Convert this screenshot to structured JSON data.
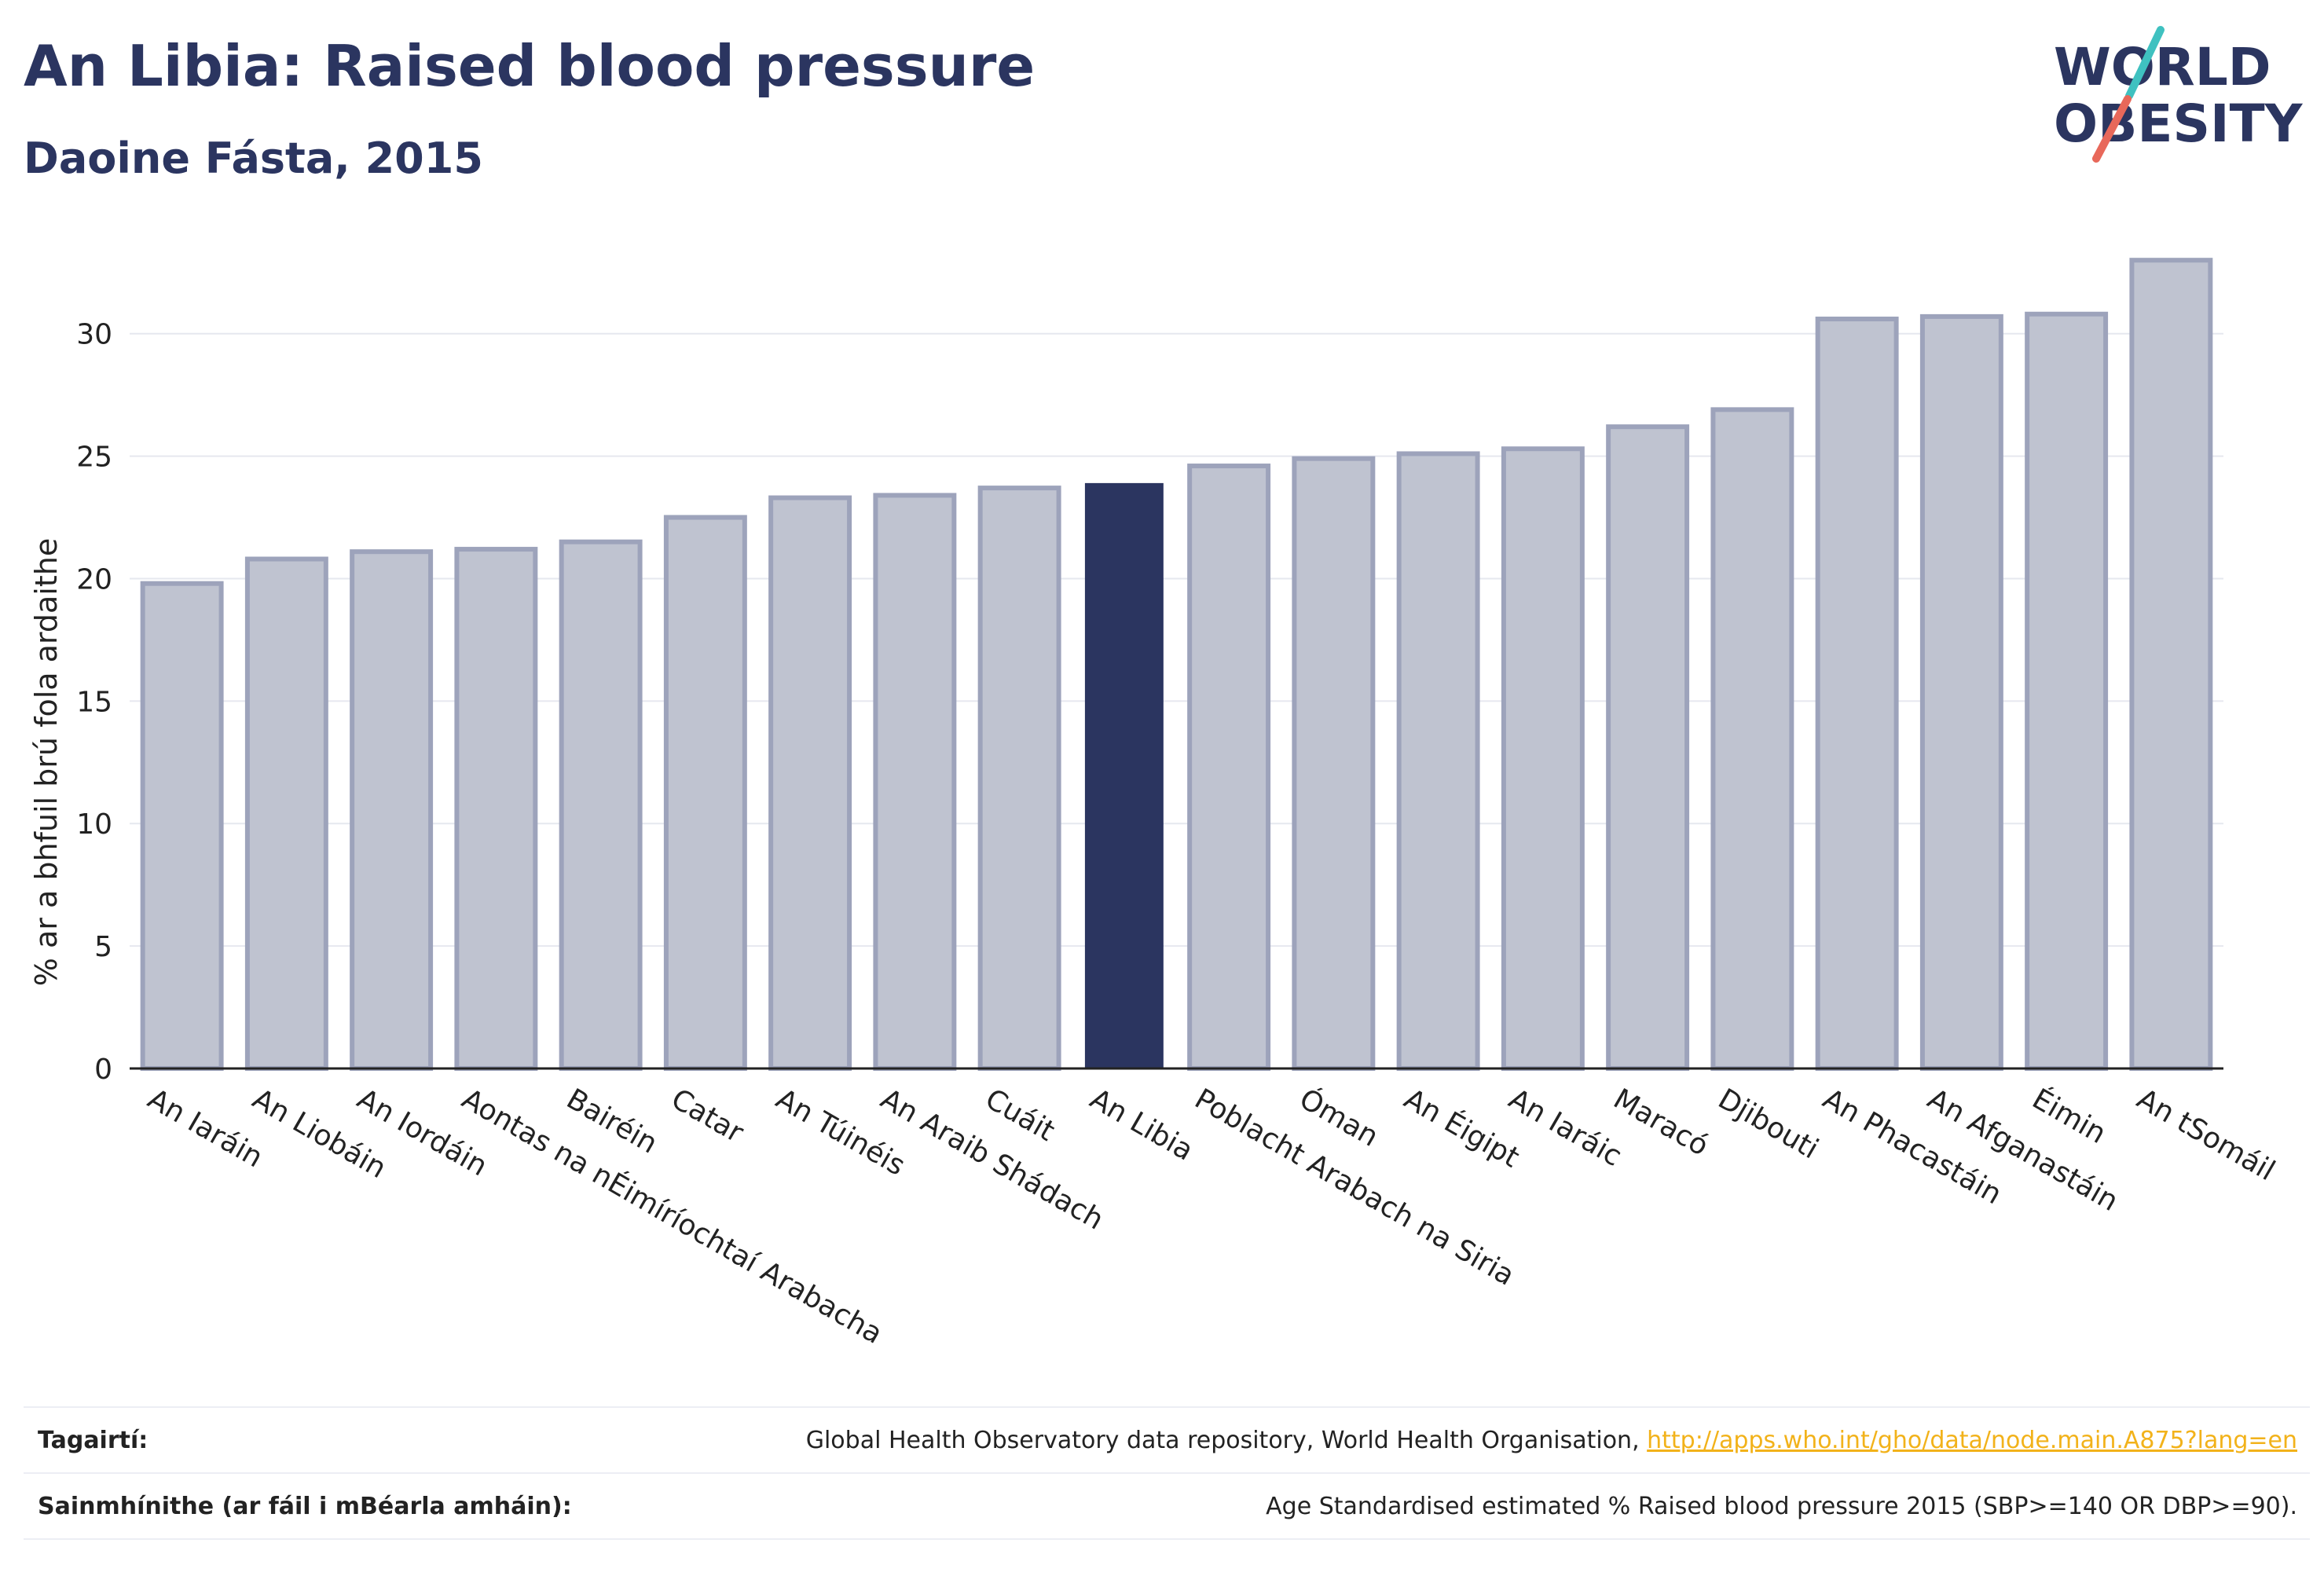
{
  "header": {
    "title": "An Libia: Raised blood pressure",
    "subtitle": "Daoine Fásta, 2015"
  },
  "logo": {
    "line1": "WORLD",
    "line2": "OBESITY",
    "colors": {
      "text": "#2b3560",
      "slash_teal": "#3fc1c0",
      "slash_red": "#e8685a"
    }
  },
  "chart_data": {
    "type": "bar",
    "title": "An Libia: Raised blood pressure",
    "subtitle": "Daoine Fásta, 2015",
    "xlabel": "",
    "ylabel": "% ar a bhfuil brú fola ardaithe",
    "ylim": [
      0,
      34
    ],
    "yticks": [
      0,
      5,
      10,
      15,
      20,
      25,
      30
    ],
    "grid": true,
    "legend": "none",
    "highlight": "An Libia",
    "colors": {
      "bar": "#bfc3d0",
      "bar_edge": "#9da3bb",
      "highlight": "#2b3560",
      "grid": "#e6e8ef",
      "axis": "#222222"
    },
    "categories": [
      "An Iaráin",
      "An Liobáin",
      "An Iordáin",
      "Aontas na nÉimíríochtaí Arabacha",
      "Bairéin",
      "Catar",
      "An Túinéis",
      "An Araib Shádach",
      "Cuáit",
      "An Libia",
      "Poblacht Arabach na Siria",
      "Óman",
      "An Éigipt",
      "An Iaráic",
      "Maracó",
      "Djibouti",
      "An Phacastáin",
      "An Afganastáin",
      "Éimin",
      "An tSomáil"
    ],
    "values": [
      19.8,
      20.8,
      21.1,
      21.2,
      21.5,
      22.5,
      23.3,
      23.4,
      23.7,
      23.9,
      24.6,
      24.9,
      25.1,
      25.3,
      26.2,
      26.9,
      30.6,
      30.7,
      30.8,
      33.0
    ]
  },
  "footer": {
    "references_label": "Tagairtí:",
    "references_text": "Global Health Observatory data repository, World Health Organisation, ",
    "references_link": "http://apps.who.int/gho/data/node.main.A875?lang=en",
    "definitions_label": "Sainmhínithe (ar fáil i mBéarla amháin):",
    "definitions_text": "Age Standardised estimated % Raised blood pressure 2015 (SBP>=140 OR DBP>=90)."
  }
}
